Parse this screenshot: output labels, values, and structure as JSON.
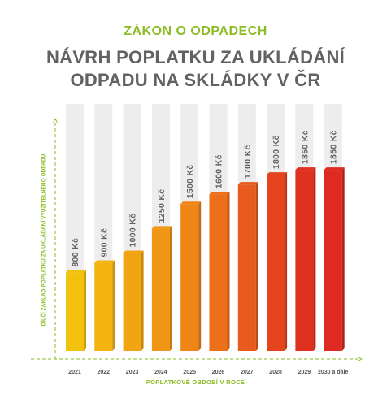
{
  "header": {
    "kicker": "ZÁKON O ODPADECH",
    "title_line1": "NÁVRH POPLATKU ZA UKLÁDÁNÍ",
    "title_line2": "ODPADU NA SKLÁDKY V ČR"
  },
  "colors": {
    "accent_green": "#8cbd24",
    "title_gray": "#626262",
    "bars": [
      "#f2c20f",
      "#f3b412",
      "#f2a512",
      "#f19514",
      "#ef8417",
      "#ec6f1a",
      "#e85a1d",
      "#e5441f",
      "#e03020",
      "#de2a21"
    ]
  },
  "chart_data": {
    "type": "bar",
    "title": "NÁVRH POPLATKU ZA UKLÁDÁNÍ ODPADU NA SKLÁDKY V ČR",
    "xlabel": "POPLATKOVÉ OBDOBÍ V ROCE",
    "ylabel": "DÍLČÍ ZÁKLAD POPLATKU ZA UKLÁDÁNÍ VYUŽITELNÉHO ODPADU",
    "categories": [
      "2021",
      "2022",
      "2023",
      "2024",
      "2025",
      "2026",
      "2027",
      "2028",
      "2029",
      "2030 a dále"
    ],
    "values": [
      800,
      900,
      1000,
      1250,
      1500,
      1600,
      1700,
      1800,
      1850,
      1850
    ],
    "value_labels": [
      "800 Kč",
      "900 Kč",
      "1000 Kč",
      "1250 Kč",
      "1500 Kč",
      "1600 Kč",
      "1700 Kč",
      "1800 Kč",
      "1850 Kč",
      "1850 Kč"
    ],
    "legend": false,
    "grid": false
  }
}
